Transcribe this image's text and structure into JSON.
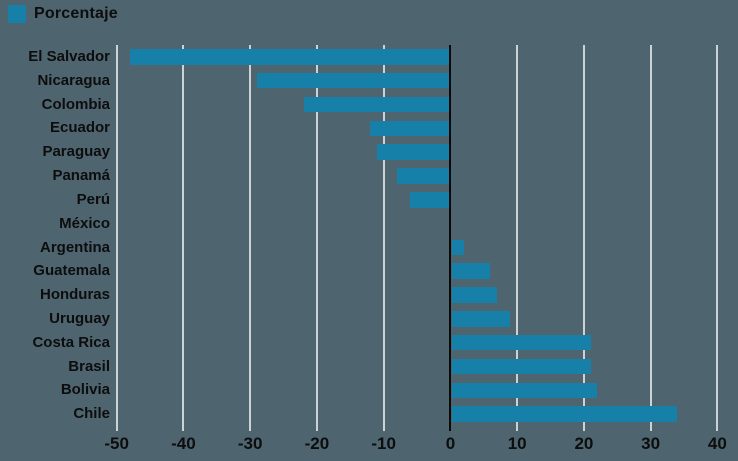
{
  "legend": {
    "label": "Porcentaje",
    "swatch_color": "#1780a8"
  },
  "colors": {
    "background": "#4e6570",
    "bar": "#1780a8",
    "gridline": "#cdd2d4",
    "zero_line": "#0a0a0a",
    "text": "#0d0d0d"
  },
  "chart_data": {
    "type": "bar",
    "orientation": "horizontal",
    "title": "",
    "series_name": "Porcentaje",
    "categories": [
      "El Salvador",
      "Nicaragua",
      "Colombia",
      "Ecuador",
      "Paraguay",
      "Panamá",
      "Perú",
      "México",
      "Argentina",
      "Guatemala",
      "Honduras",
      "Uruguay",
      "Costa Rica",
      "Brasil",
      "Bolivia",
      "Chile"
    ],
    "values": [
      -48,
      -29,
      -22,
      -12,
      -11,
      -8,
      -6,
      0,
      2,
      6,
      7,
      9,
      21,
      21,
      22,
      34
    ],
    "xlabel": "",
    "ylabel": "",
    "xlim": [
      -50,
      40
    ],
    "x_ticks": [
      -50,
      -40,
      -30,
      -20,
      -10,
      0,
      10,
      20,
      30,
      40
    ],
    "grid": "vertical",
    "legend_position": "top-left"
  }
}
